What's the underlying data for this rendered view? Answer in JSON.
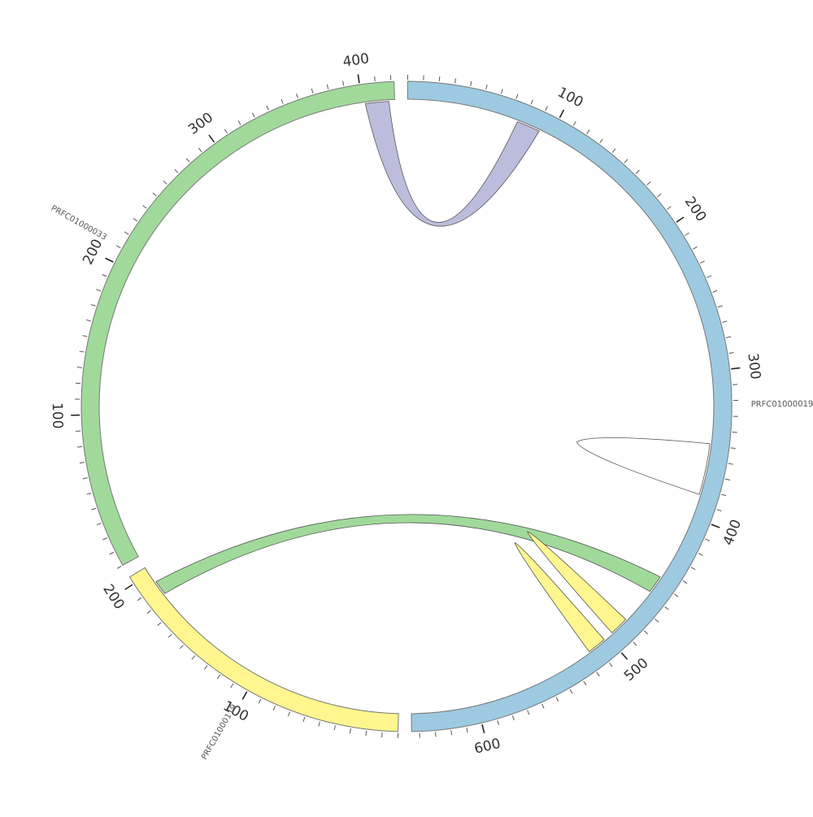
{
  "diagram": {
    "type": "circos",
    "segments": [
      {
        "id": "PRFC01000019",
        "label": "PRFC01000019",
        "length": 645,
        "color": "#9ecae1",
        "major_ticks": [
          "100",
          "200",
          "300",
          "400",
          "500",
          "600"
        ]
      },
      {
        "id": "PRFC01000119",
        "label": "PRFC01000119",
        "length": 205,
        "color": "#fff68f",
        "major_ticks": [
          "100",
          "200"
        ]
      },
      {
        "id": "PRFC01000033",
        "label": "PRFC01000033",
        "length": 422,
        "color": "#a1d99b",
        "major_ticks": [
          "100",
          "200",
          "300",
          "400"
        ]
      }
    ],
    "links": [
      {
        "from": {
          "segment": "PRFC01000033",
          "start": 402,
          "end": 418
        },
        "to": {
          "segment": "PRFC01000019",
          "start": 76,
          "end": 92
        },
        "color": "#bcbddc"
      },
      {
        "from": {
          "segment": "PRFC01000019",
          "start": 349,
          "end": 384
        },
        "to": {
          "segment": "PRFC01000019",
          "start": 349,
          "end": 384
        },
        "color": "#ffffff"
      },
      {
        "from": {
          "segment": "PRFC01000019",
          "start": 446,
          "end": 458
        },
        "to": {
          "segment": "PRFC01000119",
          "start": 183,
          "end": 193
        },
        "color": "#a1d99b"
      },
      {
        "from": {
          "segment": "PRFC01000019",
          "start": 483,
          "end": 496
        },
        "to": {
          "segment": "PRFC01000019",
          "start": 483,
          "end": 496
        },
        "color": "#fff68f"
      },
      {
        "from": {
          "segment": "PRFC01000019",
          "start": 503,
          "end": 516
        },
        "to": {
          "segment": "PRFC01000019",
          "start": 503,
          "end": 516
        },
        "color": "#fff68f"
      }
    ]
  }
}
